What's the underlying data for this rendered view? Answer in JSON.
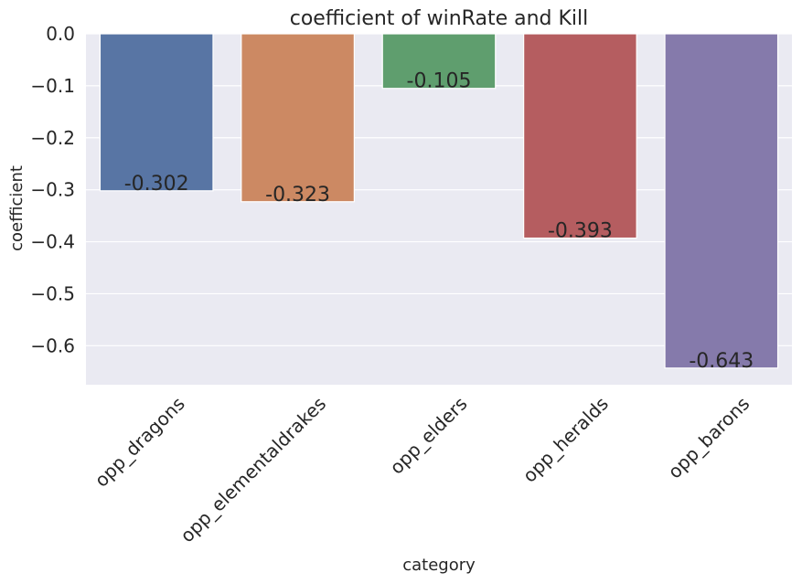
{
  "chart_data": {
    "type": "bar",
    "title": "coefficient of winRate and Kill",
    "xlabel": "category",
    "ylabel": "coefficient",
    "categories": [
      "opp_dragons",
      "opp_elementaldrakes",
      "opp_elders",
      "opp_heralds",
      "opp_barons"
    ],
    "values": [
      -0.302,
      -0.323,
      -0.105,
      -0.393,
      -0.643
    ],
    "data_labels": [
      "-0.302",
      "-0.323",
      "-0.105",
      "-0.393",
      "-0.643"
    ],
    "ylim": [
      -0.675,
      0.0
    ],
    "yticks": [
      0.0,
      -0.1,
      -0.2,
      -0.3,
      -0.4,
      -0.5,
      -0.6
    ],
    "ytick_labels": [
      "0.0",
      "−0.1",
      "−0.2",
      "−0.3",
      "−0.4",
      "−0.5",
      "−0.6"
    ],
    "grid": true,
    "colors": [
      "#5875a4",
      "#cc8963",
      "#5f9e6e",
      "#b55d60",
      "#857aab"
    ],
    "background": "#eaeaf2"
  }
}
